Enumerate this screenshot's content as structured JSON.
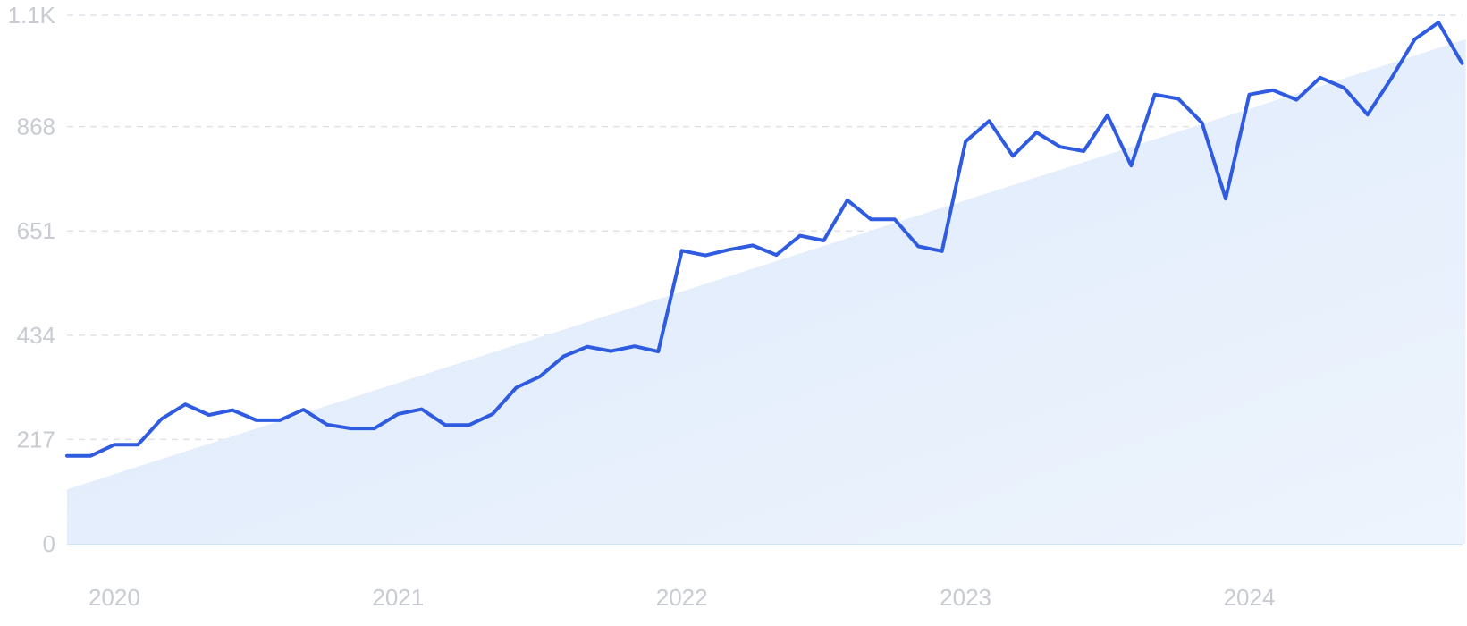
{
  "chart_data": {
    "type": "line",
    "title": "",
    "xlabel": "",
    "ylabel": "",
    "grid": true,
    "ylim": [
      0,
      1100
    ],
    "y_ticks": [
      0,
      217,
      434,
      651,
      868,
      1100
    ],
    "y_tick_labels": [
      "0",
      "217",
      "434",
      "651",
      "868",
      "1.1K"
    ],
    "x_ticks": [
      "2020-01",
      "2021-01",
      "2022-01",
      "2023-01",
      "2024-01"
    ],
    "x_tick_labels": [
      "2020",
      "2021",
      "2022",
      "2023",
      "2024"
    ],
    "colors": {
      "line": "#2f5be0",
      "trend_fill": "#dce9fa",
      "grid": "#dfe3e8",
      "tick_text": "#c8ccd2"
    },
    "series": [
      {
        "x": [
          "2019-11",
          "2019-12",
          "2020-01",
          "2020-02",
          "2020-03",
          "2020-04",
          "2020-05",
          "2020-06",
          "2020-07",
          "2020-08",
          "2020-09",
          "2020-10",
          "2020-11",
          "2020-12",
          "2021-01",
          "2021-02",
          "2021-03",
          "2021-04",
          "2021-05",
          "2021-06",
          "2021-07",
          "2021-08",
          "2021-09",
          "2021-10",
          "2021-11",
          "2021-12",
          "2022-01",
          "2022-02",
          "2022-03",
          "2022-04",
          "2022-05",
          "2022-06",
          "2022-07",
          "2022-08",
          "2022-09",
          "2022-10",
          "2022-11",
          "2022-12",
          "2023-01",
          "2023-02",
          "2023-03",
          "2023-04",
          "2023-05",
          "2023-06",
          "2023-07",
          "2023-08",
          "2023-09",
          "2023-10",
          "2023-11",
          "2023-12",
          "2024-01",
          "2024-02",
          "2024-03",
          "2024-04",
          "2024-05",
          "2024-06",
          "2024-07",
          "2024-08",
          "2024-09",
          "2024-10"
        ],
        "values": [
          183,
          183,
          206,
          206,
          260,
          290,
          268,
          278,
          257,
          257,
          279,
          248,
          240,
          240,
          270,
          280,
          247,
          247,
          270,
          325,
          348,
          390,
          410,
          401,
          411,
          400,
          610,
          600,
          612,
          621,
          601,
          641,
          631,
          715,
          675,
          675,
          619,
          609,
          837,
          880,
          807,
          856,
          826,
          817,
          892,
          787,
          935,
          926,
          876,
          718,
          935,
          944,
          924,
          970,
          949,
          893,
          968,
          1050,
          1085,
          1000
        ]
      }
    ],
    "trend": {
      "type": "linear",
      "start_value": 113,
      "end_value": 1050
    }
  }
}
